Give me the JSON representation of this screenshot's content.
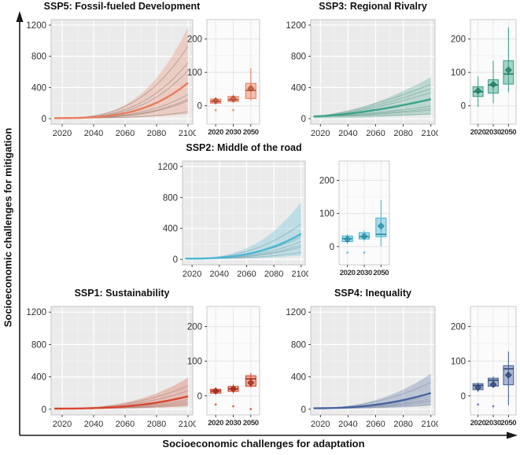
{
  "figure": {
    "y_axis_label": "Socioeconomic challenges for mitigation",
    "x_axis_label": "Socioeconomic challenges for adaptation"
  },
  "chart_data": [
    {
      "id": "ssp5",
      "title": "SSP5: Fossil-fueled Development",
      "color": "#E87C5C",
      "dark": "#B34F33",
      "member_color": "#9E8C83",
      "line_chart": {
        "type": "line",
        "x_ticks": [
          2020,
          2040,
          2060,
          2080,
          2100
        ],
        "y_ticks": [
          0,
          400,
          800,
          1200
        ],
        "x_range": [
          2013,
          2103
        ],
        "y_range": [
          -70,
          1270
        ],
        "start": 8,
        "curve_power": 3.1,
        "median_end": 460,
        "band": [
          60,
          1180
        ],
        "member_ends": [
          930,
          720,
          620,
          310,
          250,
          230,
          90
        ]
      },
      "box_chart": {
        "type": "boxplot",
        "y_ticks": [
          0,
          100,
          200
        ],
        "y_range": [
          -55,
          258
        ],
        "boxes": [
          {
            "year": "2020",
            "low": 4,
            "q1": 8,
            "median": 13,
            "q3": 20,
            "high": 25,
            "mean": 15,
            "outliers": [
              -13
            ]
          },
          {
            "year": "2030",
            "low": 8,
            "q1": 13,
            "median": 18,
            "q3": 28,
            "high": 34,
            "mean": 21,
            "outliers": [
              -13
            ]
          },
          {
            "year": "2050",
            "low": 15,
            "q1": 22,
            "median": 46,
            "q3": 67,
            "high": 113,
            "mean": 52,
            "outliers": []
          }
        ]
      }
    },
    {
      "id": "ssp3",
      "title": "SSP3: Regional Rivalry",
      "color": "#3CA28A",
      "dark": "#1F7A64",
      "member_color": "#7FA89C",
      "line_chart": {
        "type": "line",
        "x_ticks": [
          2020,
          2040,
          2060,
          2080,
          2100
        ],
        "y_ticks": [
          0,
          400,
          800,
          1200
        ],
        "x_range": [
          2013,
          2103
        ],
        "y_range": [
          -70,
          1270
        ],
        "start": 30,
        "curve_power": 1.55,
        "median_end": 250,
        "band": [
          55,
          530
        ],
        "member_ends": [
          440,
          385,
          335,
          160,
          130,
          110,
          60
        ]
      },
      "box_chart": {
        "type": "boxplot",
        "y_ticks": [
          0,
          100,
          200
        ],
        "y_range": [
          -55,
          258
        ],
        "boxes": [
          {
            "year": "2020",
            "low": -3,
            "q1": 28,
            "median": 42,
            "q3": 57,
            "high": 88,
            "mean": 45,
            "outliers": []
          },
          {
            "year": "2030",
            "low": 8,
            "q1": 38,
            "median": 62,
            "q3": 78,
            "high": 135,
            "mean": 64,
            "outliers": []
          },
          {
            "year": "2050",
            "low": 40,
            "q1": 65,
            "median": 95,
            "q3": 135,
            "high": 235,
            "mean": 107,
            "outliers": []
          }
        ]
      }
    },
    {
      "id": "ssp2",
      "title": "SSP2: Middle of the road",
      "color": "#4BB6D1",
      "dark": "#2A8CA6",
      "member_color": "#87A9B3",
      "line_chart": {
        "type": "line",
        "x_ticks": [
          2020,
          2040,
          2060,
          2080,
          2100
        ],
        "y_ticks": [
          0,
          400,
          800,
          1200
        ],
        "x_range": [
          2013,
          2103
        ],
        "y_range": [
          -70,
          1270
        ],
        "start": 10,
        "curve_power": 2.7,
        "median_end": 330,
        "band": [
          50,
          740
        ],
        "member_ends": [
          460,
          290,
          230,
          185,
          160,
          90
        ]
      },
      "box_chart": {
        "type": "boxplot",
        "y_ticks": [
          0,
          100,
          200
        ],
        "y_range": [
          -55,
          258
        ],
        "boxes": [
          {
            "year": "2020",
            "low": 9,
            "q1": 15,
            "median": 24,
            "q3": 32,
            "high": 37,
            "mean": 22,
            "outliers": [
              -18
            ]
          },
          {
            "year": "2030",
            "low": 17,
            "q1": 23,
            "median": 30,
            "q3": 42,
            "high": 48,
            "mean": 31,
            "outliers": [
              -18
            ]
          },
          {
            "year": "2050",
            "low": 1,
            "q1": 30,
            "median": 37,
            "q3": 86,
            "high": 140,
            "mean": 62,
            "outliers": []
          }
        ]
      }
    },
    {
      "id": "ssp1",
      "title": "SSP1: Sustainability",
      "color": "#D7472F",
      "dark": "#9E2B18",
      "member_color": "#B08A80",
      "line_chart": {
        "type": "line",
        "x_ticks": [
          2020,
          2040,
          2060,
          2080,
          2100
        ],
        "y_ticks": [
          0,
          400,
          800,
          1200
        ],
        "x_range": [
          2013,
          2103
        ],
        "y_range": [
          -70,
          1270
        ],
        "start": 8,
        "curve_power": 2.7,
        "median_end": 160,
        "band": [
          35,
          390
        ],
        "member_ends": [
          290,
          230,
          120,
          95,
          75,
          55
        ]
      },
      "box_chart": {
        "type": "boxplot",
        "y_ticks": [
          0,
          100,
          200
        ],
        "y_range": [
          -55,
          258
        ],
        "boxes": [
          {
            "year": "2020",
            "low": 4,
            "q1": 8,
            "median": 14,
            "q3": 19,
            "high": 24,
            "mean": 14,
            "outliers": [
              -25
            ]
          },
          {
            "year": "2030",
            "low": 7,
            "q1": 13,
            "median": 20,
            "q3": 27,
            "high": 33,
            "mean": 20,
            "outliers": [
              -30
            ]
          },
          {
            "year": "2050",
            "low": 24,
            "q1": 28,
            "median": 49,
            "q3": 58,
            "high": 66,
            "mean": 38,
            "outliers": [
              -38
            ]
          }
        ]
      }
    },
    {
      "id": "ssp4",
      "title": "SSP4: Inequality",
      "color": "#49639E",
      "dark": "#2D4372",
      "member_color": "#8D97AC",
      "line_chart": {
        "type": "line",
        "x_ticks": [
          2020,
          2040,
          2060,
          2080,
          2100
        ],
        "y_ticks": [
          0,
          400,
          800,
          1200
        ],
        "x_range": [
          2013,
          2103
        ],
        "y_range": [
          -70,
          1270
        ],
        "start": 12,
        "curve_power": 2.3,
        "median_end": 200,
        "band": [
          45,
          440
        ],
        "member_ends": [
          330,
          160,
          130,
          110,
          90,
          60
        ]
      },
      "box_chart": {
        "type": "boxplot",
        "y_ticks": [
          0,
          100,
          200
        ],
        "y_range": [
          -55,
          258
        ],
        "boxes": [
          {
            "year": "2020",
            "low": 11,
            "q1": 18,
            "median": 30,
            "q3": 35,
            "high": 39,
            "mean": 24,
            "outliers": [
              -25
            ]
          },
          {
            "year": "2030",
            "low": 24,
            "q1": 28,
            "median": 45,
            "q3": 51,
            "high": 56,
            "mean": 33,
            "outliers": [
              -30
            ]
          },
          {
            "year": "2050",
            "low": -27,
            "q1": 32,
            "median": 78,
            "q3": 87,
            "high": 128,
            "mean": 60,
            "outliers": []
          }
        ]
      }
    }
  ]
}
